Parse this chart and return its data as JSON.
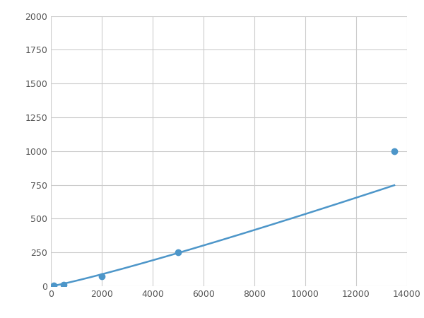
{
  "x_data": [
    100,
    500,
    2000,
    5000,
    13500
  ],
  "y_data": [
    5,
    10,
    75,
    250,
    1000
  ],
  "line_color": "#4d96c9",
  "marker_color": "#4d96c9",
  "marker_size": 6,
  "line_width": 1.8,
  "xlim": [
    0,
    14000
  ],
  "ylim": [
    0,
    2000
  ],
  "xticks": [
    0,
    2000,
    4000,
    6000,
    8000,
    10000,
    12000,
    14000
  ],
  "yticks": [
    0,
    250,
    500,
    750,
    1000,
    1250,
    1500,
    1750,
    2000
  ],
  "grid_color": "#cccccc",
  "background_color": "#ffffff",
  "figsize": [
    6.0,
    4.5
  ],
  "dpi": 100
}
